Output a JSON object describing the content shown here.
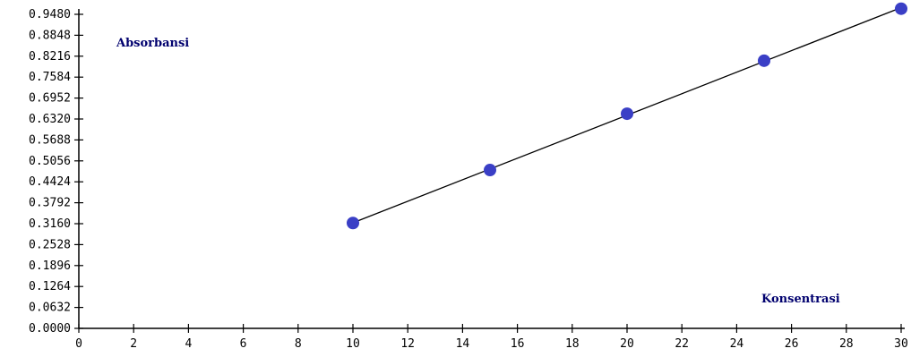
{
  "chart_data": {
    "type": "scatter",
    "xlabel": "Konsentrasi",
    "ylabel": "Absorbansi",
    "xlim": [
      0,
      30
    ],
    "ylim": [
      0,
      0.948
    ],
    "x_ticks": [
      "0",
      "2",
      "4",
      "6",
      "8",
      "10",
      "12",
      "14",
      "16",
      "18",
      "20",
      "22",
      "24",
      "26",
      "28",
      "30"
    ],
    "y_ticks": [
      "0.0000",
      "0.0632",
      "0.1264",
      "0.1896",
      "0.2528",
      "0.3160",
      "0.3792",
      "0.4424",
      "0.5056",
      "0.5688",
      "0.6320",
      "0.6952",
      "0.7584",
      "0.8216",
      "0.8848",
      "0.9480"
    ],
    "series": [
      {
        "x": [
          10,
          15,
          20,
          25,
          30
        ],
        "y": [
          0.318,
          0.478,
          0.648,
          0.808,
          0.965
        ],
        "fit_line": true
      }
    ],
    "grid": false,
    "colors": {
      "point": "#3a3fc6",
      "line": "#000000",
      "title": "#00006e"
    }
  }
}
